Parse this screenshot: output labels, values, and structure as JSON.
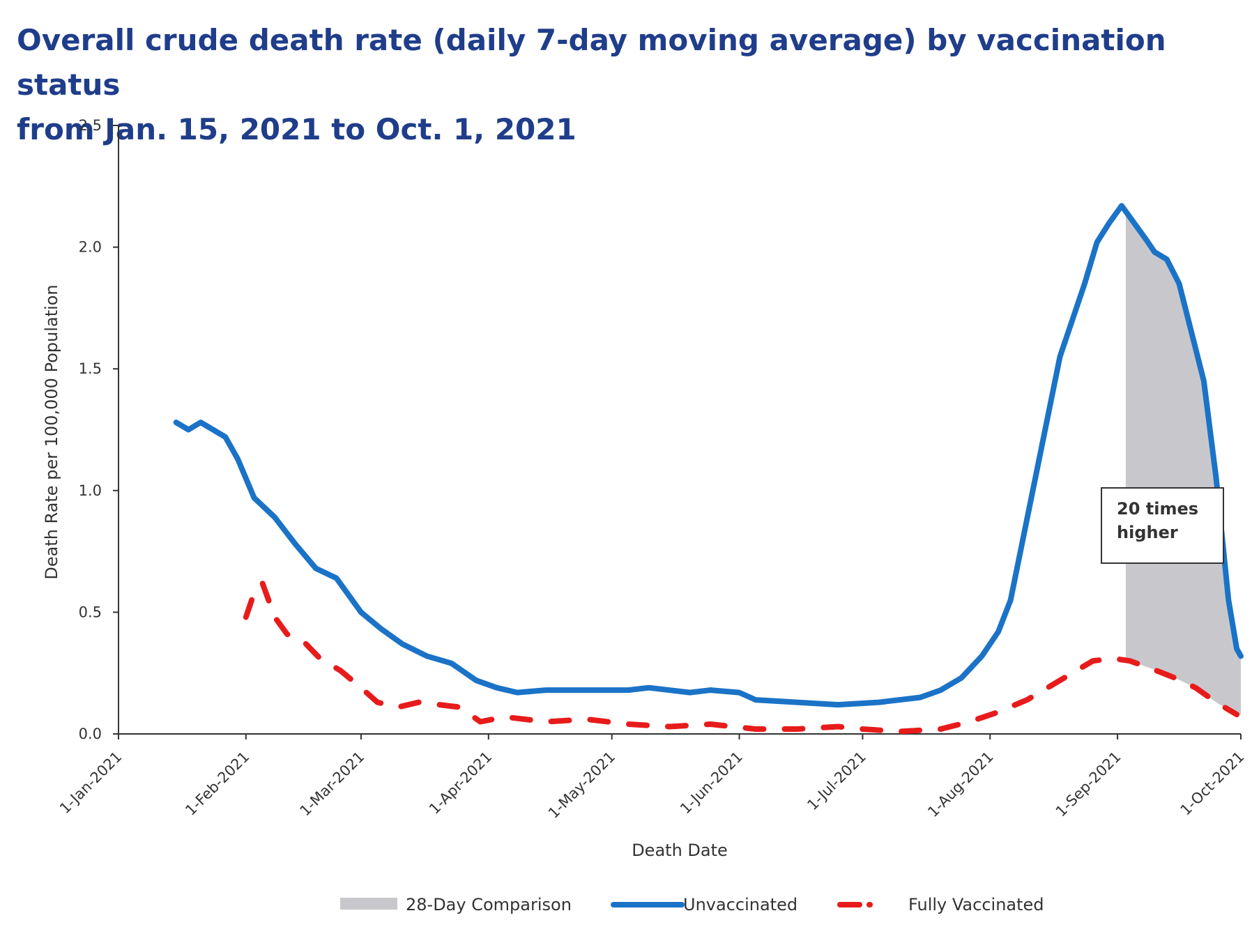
{
  "title_line1": "Overall crude death rate (daily 7-day moving average) by vaccination status",
  "title_line2": "from Jan. 15, 2021 to Oct. 1, 2021",
  "chart_data": {
    "type": "line",
    "xlabel": "Death Date",
    "ylabel": "Death Rate per 100,000 Population",
    "ylim": [
      0,
      2.5
    ],
    "yticks": [
      "0.0",
      "0.5",
      "1.0",
      "1.5",
      "2.0",
      "2.5"
    ],
    "xticks": [
      "1-Jan-2021",
      "1-Feb-2021",
      "1-Mar-2021",
      "1-Apr-2021",
      "1-May-2021",
      "1-Jun-2021",
      "1-Jul-2021",
      "1-Aug-2021",
      "1-Sep-2021",
      "1-Oct-2021"
    ],
    "grid": false,
    "legend_position": "bottom",
    "series": [
      {
        "name": "Unvaccinated",
        "color": "#1a73c7",
        "style": "solid",
        "points": [
          [
            "2021-01-15",
            1.28
          ],
          [
            "2021-01-18",
            1.25
          ],
          [
            "2021-01-21",
            1.28
          ],
          [
            "2021-01-24",
            1.25
          ],
          [
            "2021-01-27",
            1.22
          ],
          [
            "2021-01-30",
            1.13
          ],
          [
            "2021-02-03",
            0.97
          ],
          [
            "2021-02-08",
            0.89
          ],
          [
            "2021-02-13",
            0.78
          ],
          [
            "2021-02-18",
            0.68
          ],
          [
            "2021-02-23",
            0.64
          ],
          [
            "2021-03-01",
            0.5
          ],
          [
            "2021-03-06",
            0.43
          ],
          [
            "2021-03-11",
            0.37
          ],
          [
            "2021-03-17",
            0.32
          ],
          [
            "2021-03-23",
            0.29
          ],
          [
            "2021-03-29",
            0.22
          ],
          [
            "2021-04-03",
            0.19
          ],
          [
            "2021-04-08",
            0.17
          ],
          [
            "2021-04-15",
            0.18
          ],
          [
            "2021-04-25",
            0.18
          ],
          [
            "2021-05-05",
            0.18
          ],
          [
            "2021-05-10",
            0.19
          ],
          [
            "2021-05-20",
            0.17
          ],
          [
            "2021-05-25",
            0.18
          ],
          [
            "2021-06-01",
            0.17
          ],
          [
            "2021-06-05",
            0.14
          ],
          [
            "2021-06-15",
            0.13
          ],
          [
            "2021-06-25",
            0.12
          ],
          [
            "2021-07-05",
            0.13
          ],
          [
            "2021-07-15",
            0.15
          ],
          [
            "2021-07-20",
            0.18
          ],
          [
            "2021-07-25",
            0.23
          ],
          [
            "2021-07-30",
            0.32
          ],
          [
            "2021-08-03",
            0.42
          ],
          [
            "2021-08-06",
            0.55
          ],
          [
            "2021-08-09",
            0.8
          ],
          [
            "2021-08-12",
            1.05
          ],
          [
            "2021-08-15",
            1.3
          ],
          [
            "2021-08-18",
            1.55
          ],
          [
            "2021-08-21",
            1.7
          ],
          [
            "2021-08-24",
            1.85
          ],
          [
            "2021-08-27",
            2.02
          ],
          [
            "2021-08-30",
            2.1
          ],
          [
            "2021-09-02",
            2.17
          ],
          [
            "2021-09-05",
            2.1
          ],
          [
            "2021-09-08",
            2.03
          ],
          [
            "2021-09-10",
            1.98
          ],
          [
            "2021-09-13",
            1.95
          ],
          [
            "2021-09-16",
            1.85
          ],
          [
            "2021-09-19",
            1.65
          ],
          [
            "2021-09-22",
            1.45
          ],
          [
            "2021-09-25",
            1.05
          ],
          [
            "2021-09-28",
            0.55
          ],
          [
            "2021-09-30",
            0.35
          ],
          [
            "2021-10-01",
            0.32
          ]
        ]
      },
      {
        "name": "Fully Vaccinated",
        "color": "#e81b1b",
        "style": "dashed",
        "points": [
          [
            "2021-02-01",
            0.48
          ],
          [
            "2021-02-03",
            0.58
          ],
          [
            "2021-02-05",
            0.62
          ],
          [
            "2021-02-08",
            0.48
          ],
          [
            "2021-02-11",
            0.41
          ],
          [
            "2021-02-15",
            0.38
          ],
          [
            "2021-02-19",
            0.31
          ],
          [
            "2021-02-24",
            0.26
          ],
          [
            "2021-03-01",
            0.19
          ],
          [
            "2021-03-05",
            0.13
          ],
          [
            "2021-03-10",
            0.11
          ],
          [
            "2021-03-15",
            0.13
          ],
          [
            "2021-03-20",
            0.12
          ],
          [
            "2021-03-25",
            0.11
          ],
          [
            "2021-03-30",
            0.05
          ],
          [
            "2021-04-05",
            0.07
          ],
          [
            "2021-04-15",
            0.05
          ],
          [
            "2021-04-25",
            0.06
          ],
          [
            "2021-05-05",
            0.04
          ],
          [
            "2021-05-15",
            0.03
          ],
          [
            "2021-05-25",
            0.04
          ],
          [
            "2021-06-05",
            0.02
          ],
          [
            "2021-06-15",
            0.02
          ],
          [
            "2021-06-25",
            0.03
          ],
          [
            "2021-07-01",
            0.02
          ],
          [
            "2021-07-10",
            0.01
          ],
          [
            "2021-07-20",
            0.02
          ],
          [
            "2021-07-27",
            0.05
          ],
          [
            "2021-08-03",
            0.09
          ],
          [
            "2021-08-10",
            0.14
          ],
          [
            "2021-08-17",
            0.21
          ],
          [
            "2021-08-22",
            0.26
          ],
          [
            "2021-08-26",
            0.3
          ],
          [
            "2021-08-31",
            0.31
          ],
          [
            "2021-09-04",
            0.3
          ],
          [
            "2021-09-09",
            0.27
          ],
          [
            "2021-09-15",
            0.23
          ],
          [
            "2021-09-20",
            0.19
          ],
          [
            "2021-09-25",
            0.13
          ],
          [
            "2021-09-30",
            0.08
          ]
        ]
      }
    ],
    "comparison_band": {
      "name": "28-Day Comparison",
      "color": "#c8c8cc",
      "start": "2021-09-03",
      "end": "2021-10-01"
    },
    "annotation": {
      "line1": "20 times",
      "line2": "higher"
    }
  }
}
